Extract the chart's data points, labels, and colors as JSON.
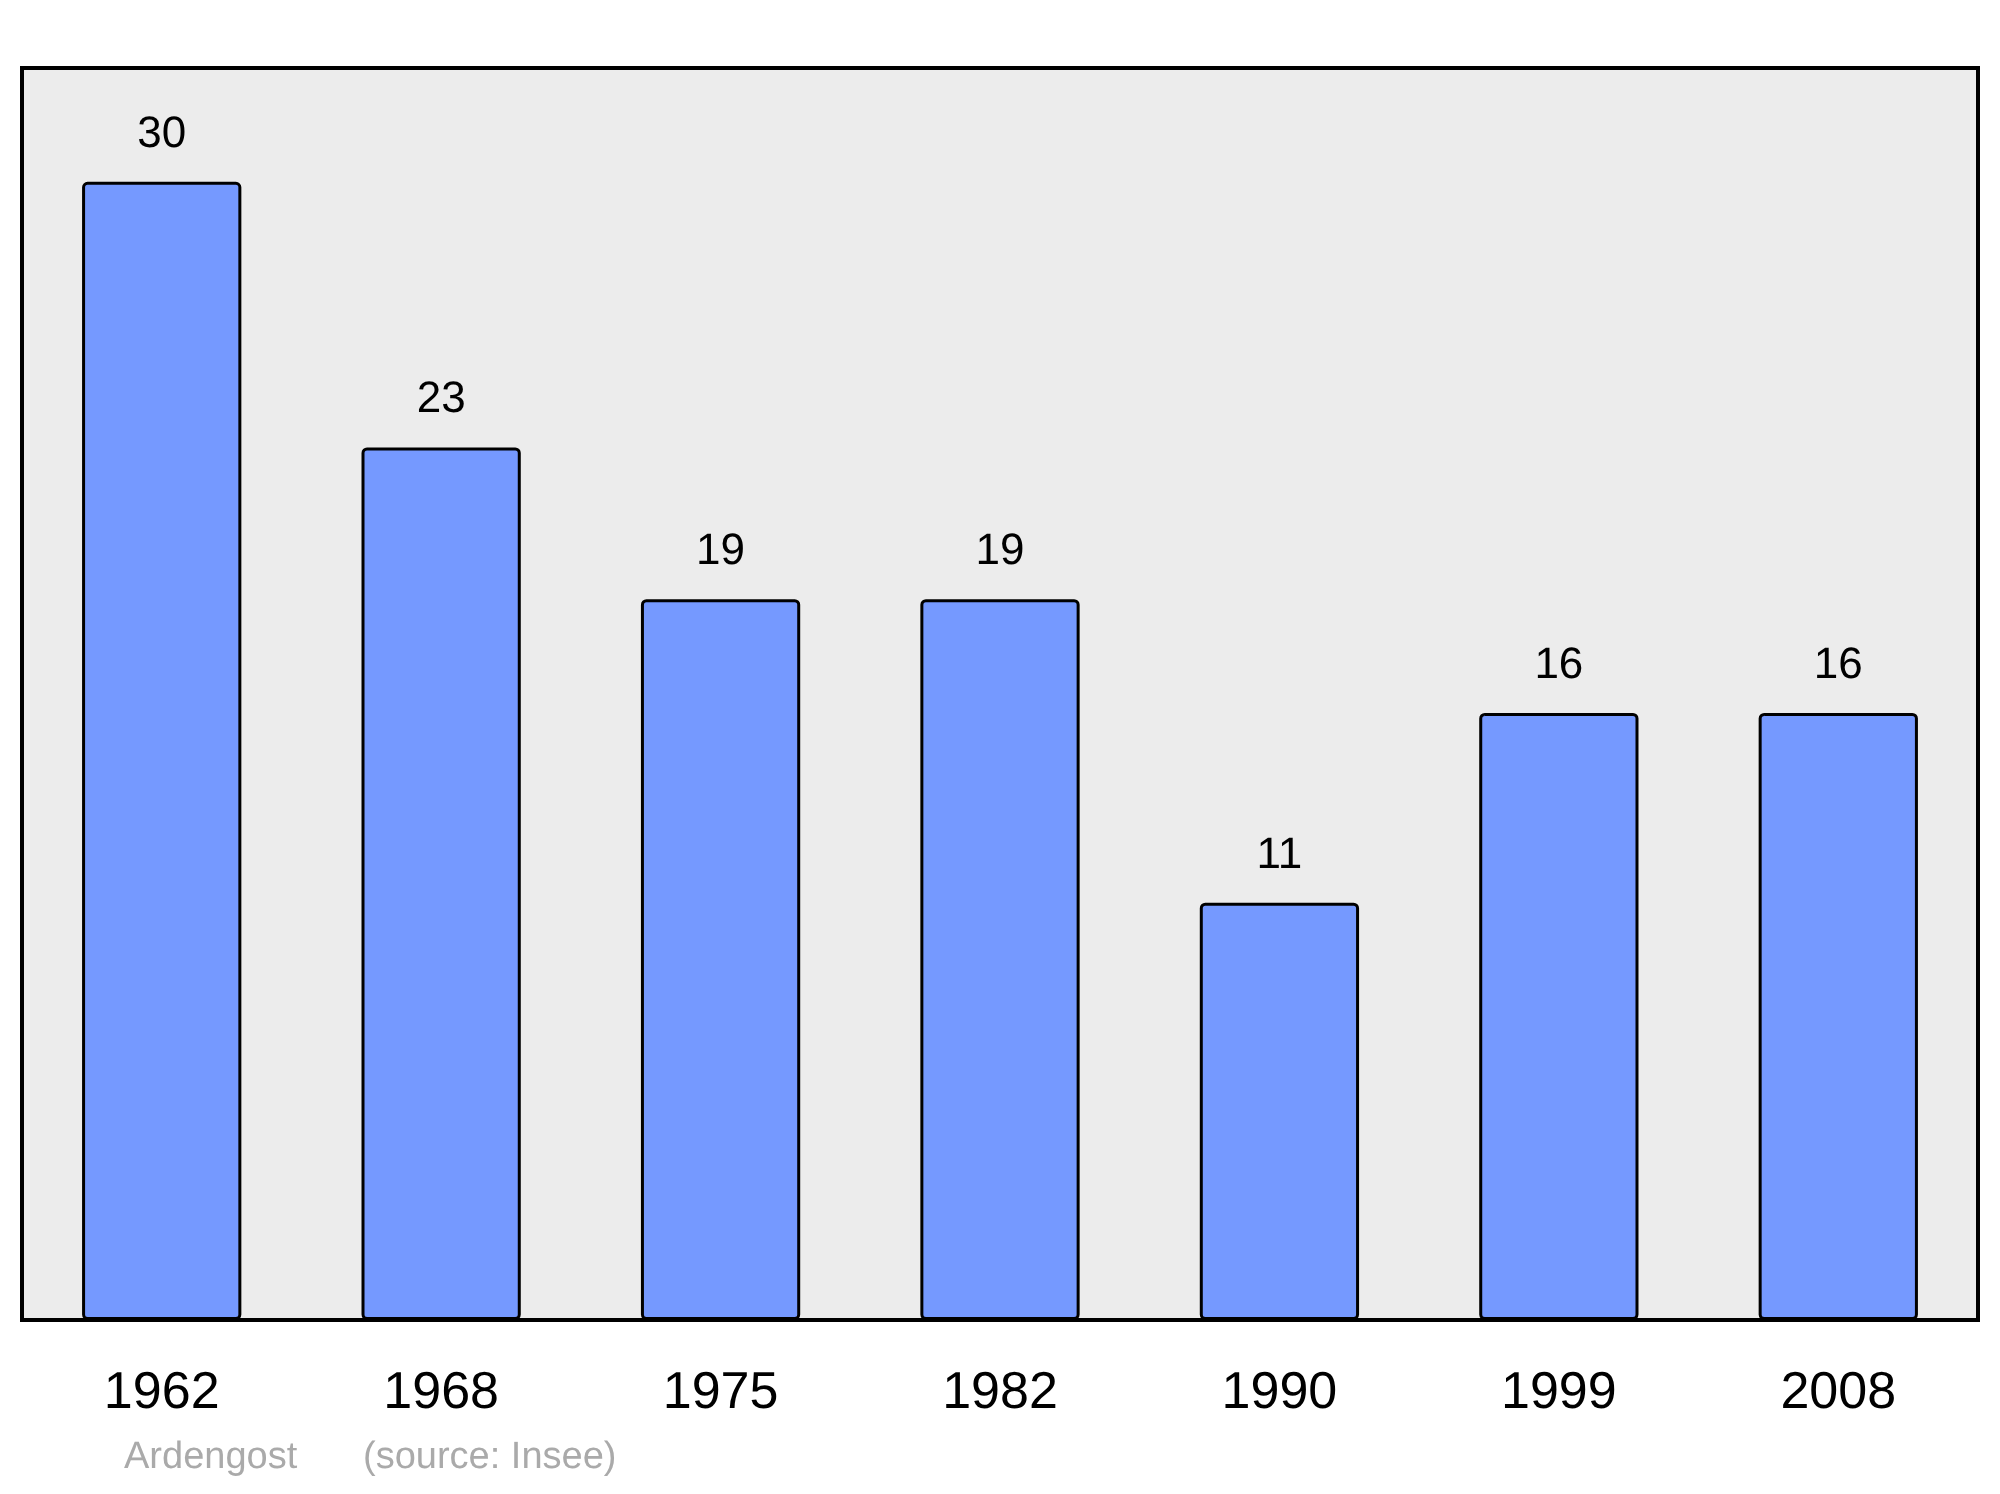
{
  "chart_data": {
    "type": "bar",
    "categories": [
      "1962",
      "1968",
      "1975",
      "1982",
      "1990",
      "1999",
      "2008"
    ],
    "values": [
      30,
      23,
      19,
      19,
      11,
      16,
      16
    ],
    "color": "#7599ff",
    "data_labels": true,
    "ylim": [
      0,
      33
    ],
    "tick_labels": "x",
    "annotations": [
      "Ardengost",
      "(source: Insee)"
    ]
  }
}
